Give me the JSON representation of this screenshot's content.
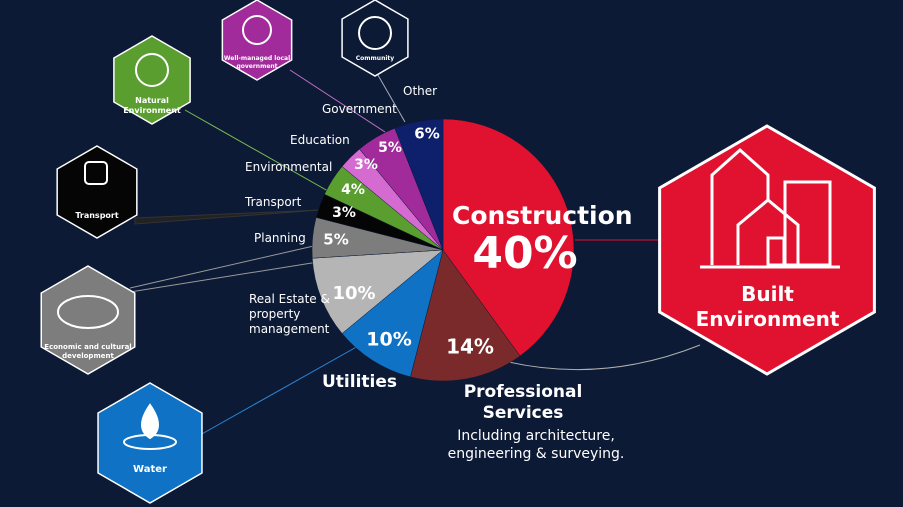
{
  "chart_data": {
    "type": "pie",
    "categories": [
      "Construction",
      "Professional Services",
      "Utilities",
      "Real Estate & property management",
      "Planning",
      "Transport",
      "Environmental",
      "Education",
      "Government",
      "Other"
    ],
    "values": [
      40,
      14,
      10,
      10,
      5,
      3,
      4,
      3,
      5,
      6
    ],
    "value_labels": [
      "40%",
      "14%",
      "10%",
      "10%",
      "5%",
      "3%",
      "4%",
      "3%",
      "5%",
      "6%"
    ],
    "colors": [
      "#e0122f",
      "#7a2a2a",
      "#0f72c4",
      "#b5b5b5",
      "#7d7d7d",
      "#050505",
      "#5a9e2f",
      "#d56ad0",
      "#a12b9a",
      "#0e1f6b"
    ],
    "annotation": "Including architecture, engineering & surveying."
  },
  "hexagons": [
    {
      "label": "Built Environment",
      "color": "#e0122f"
    },
    {
      "label": "Well-managed local government",
      "color": "#a12b9a"
    },
    {
      "label": "Community",
      "color": "#0c1a36"
    },
    {
      "label": "Natural Environment",
      "color": "#5a9e2f"
    },
    {
      "label": "Transport",
      "color": "#050505"
    },
    {
      "label": "Economic and cultural development",
      "color": "#7d7d7d"
    },
    {
      "label": "Water",
      "color": "#0f72c4"
    }
  ]
}
